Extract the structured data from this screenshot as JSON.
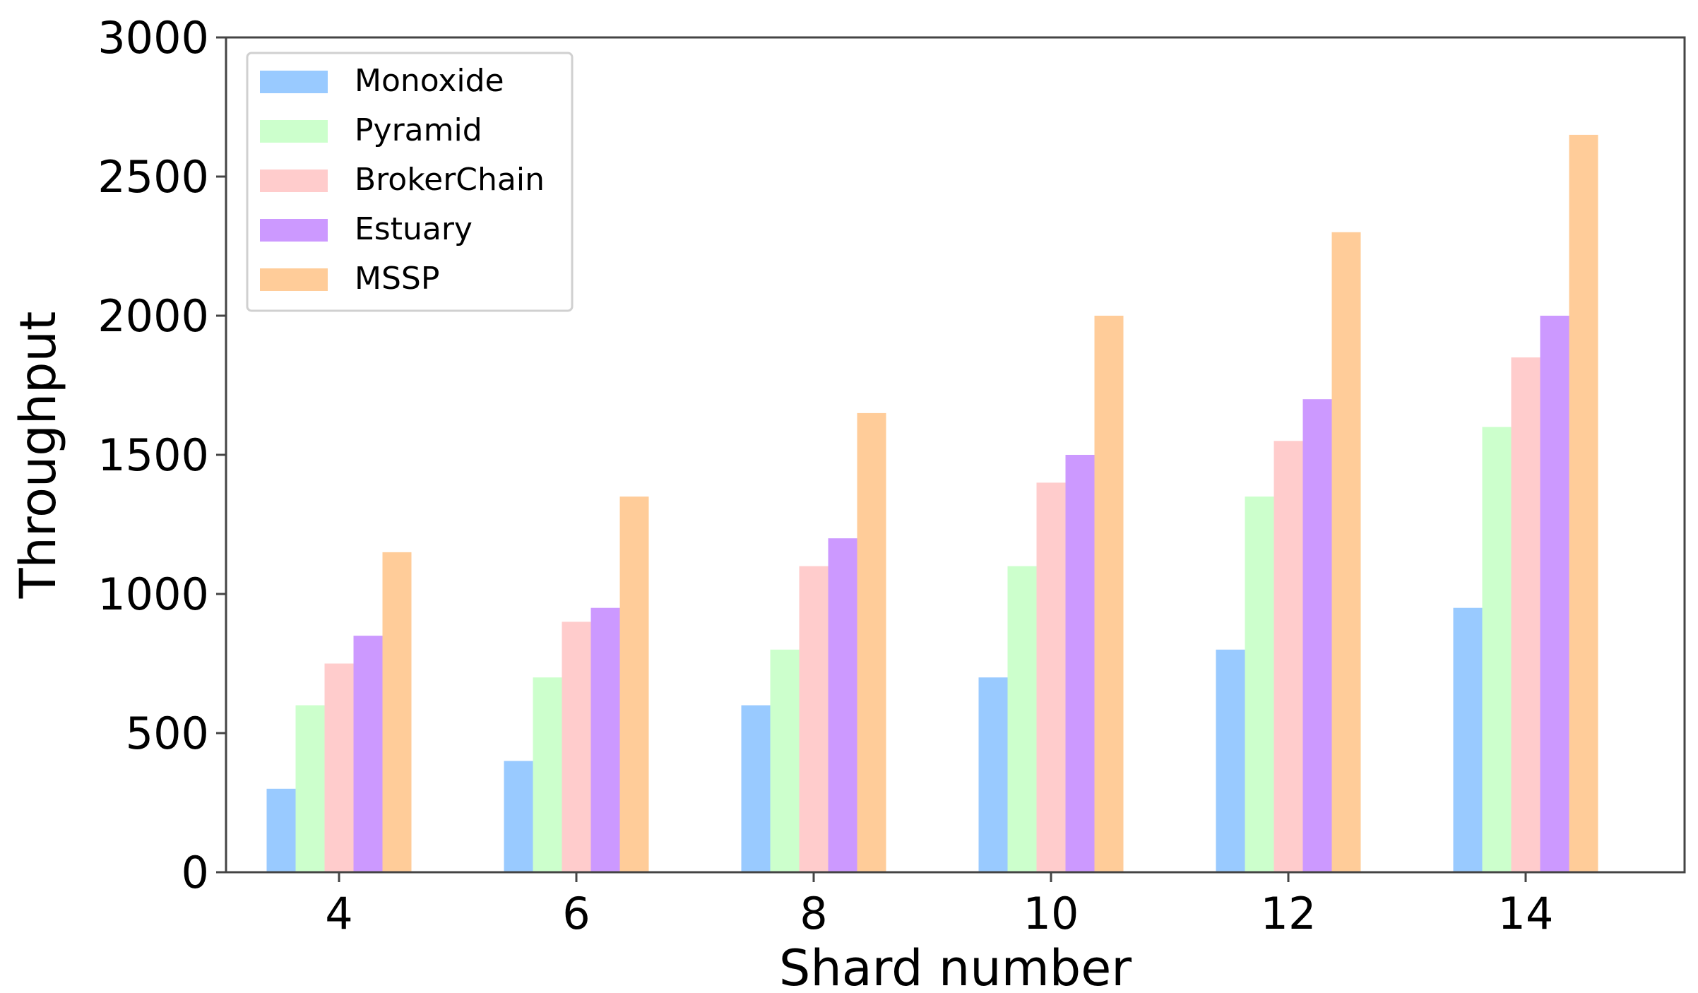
{
  "chart_data": {
    "type": "bar",
    "xlabel": "Shard number",
    "ylabel": "Throughput",
    "categories": [
      "4",
      "6",
      "8",
      "10",
      "12",
      "14"
    ],
    "ylim": [
      0,
      3000
    ],
    "yticks": [
      0,
      500,
      1000,
      1500,
      2000,
      2500,
      3000
    ],
    "grid": false,
    "legend_position": "top-left",
    "series": [
      {
        "name": "Monoxide",
        "color": "#99caff",
        "values": [
          300,
          400,
          600,
          700,
          800,
          950
        ]
      },
      {
        "name": "Pyramid",
        "color": "#ccffcc",
        "values": [
          600,
          700,
          800,
          1100,
          1350,
          1600
        ]
      },
      {
        "name": "BrokerChain",
        "color": "#ffcccc",
        "values": [
          750,
          900,
          1100,
          1400,
          1550,
          1850
        ]
      },
      {
        "name": "Estuary",
        "color": "#cc99ff",
        "values": [
          850,
          950,
          1200,
          1500,
          1700,
          2000
        ]
      },
      {
        "name": "MSSP",
        "color": "#ffcc99",
        "values": [
          1150,
          1350,
          1650,
          2000,
          2300,
          2650
        ]
      }
    ]
  }
}
